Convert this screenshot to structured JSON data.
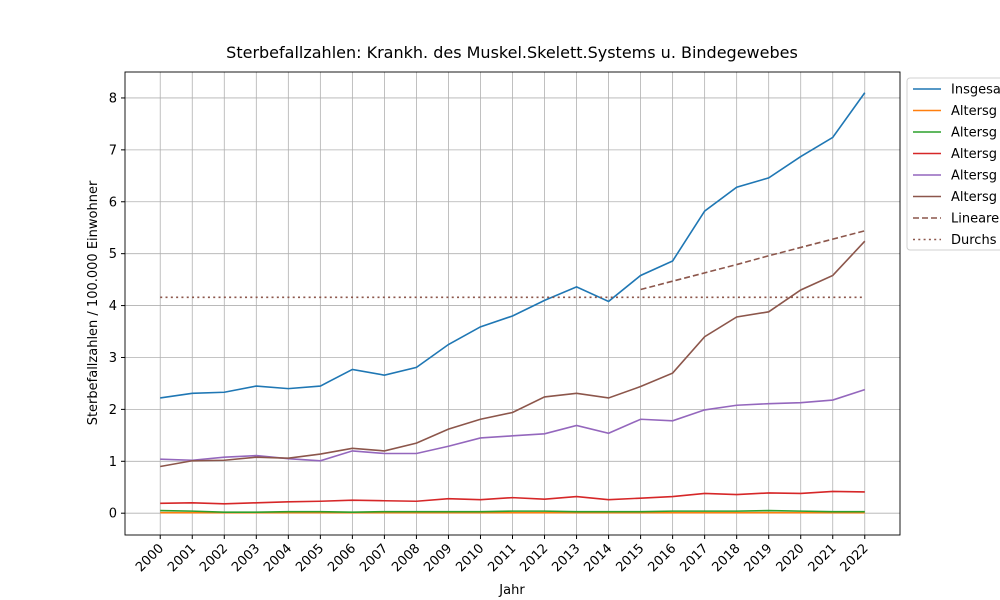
{
  "chart_data": {
    "type": "line",
    "title": "Sterbefallzahlen: Krankh. des Muskel.Skelett.Systems u. Bindegewebes",
    "xlabel": "Jahr",
    "ylabel": "Sterbefallzahlen / 100.000 Einwohner",
    "x": [
      2000,
      2001,
      2002,
      2003,
      2004,
      2005,
      2006,
      2007,
      2008,
      2009,
      2010,
      2011,
      2012,
      2013,
      2014,
      2015,
      2016,
      2017,
      2018,
      2019,
      2020,
      2021,
      2022
    ],
    "xticks": [
      2000,
      2001,
      2002,
      2003,
      2004,
      2005,
      2006,
      2007,
      2008,
      2009,
      2010,
      2011,
      2012,
      2013,
      2014,
      2015,
      2016,
      2017,
      2018,
      2019,
      2020,
      2021,
      2022
    ],
    "xlim": [
      1998.9,
      2023.1
    ],
    "ylim": [
      -0.42,
      8.5
    ],
    "yticks": [
      0,
      1,
      2,
      3,
      4,
      5,
      6,
      7,
      8
    ],
    "grid": true,
    "legend": "outside upper right",
    "series": [
      {
        "name": "Insgesa",
        "color": "#1f77b4",
        "dash": "solid",
        "values": [
          2.22,
          2.31,
          2.33,
          2.45,
          2.4,
          2.45,
          2.77,
          2.66,
          2.81,
          3.25,
          3.59,
          3.8,
          4.1,
          4.36,
          4.08,
          4.58,
          4.86,
          5.82,
          6.28,
          6.46,
          6.87,
          7.24,
          8.1
        ]
      },
      {
        "name": "Altersg",
        "color": "#ff7f0e",
        "dash": "solid",
        "values": [
          0.01,
          0.01,
          0.01,
          0.01,
          0.01,
          0.01,
          0.01,
          0.01,
          0.01,
          0.01,
          0.01,
          0.01,
          0.01,
          0.01,
          0.01,
          0.01,
          0.01,
          0.01,
          0.01,
          0.01,
          0.01,
          0.01,
          0.01
        ]
      },
      {
        "name": "Altersg",
        "color": "#2ca02c",
        "dash": "solid",
        "values": [
          0.05,
          0.04,
          0.02,
          0.02,
          0.03,
          0.03,
          0.02,
          0.03,
          0.03,
          0.03,
          0.03,
          0.04,
          0.04,
          0.03,
          0.03,
          0.03,
          0.04,
          0.04,
          0.04,
          0.05,
          0.04,
          0.03,
          0.03
        ]
      },
      {
        "name": "Altersg",
        "color": "#d62728",
        "dash": "solid",
        "values": [
          0.19,
          0.2,
          0.18,
          0.2,
          0.22,
          0.23,
          0.25,
          0.24,
          0.23,
          0.28,
          0.26,
          0.3,
          0.27,
          0.32,
          0.26,
          0.29,
          0.32,
          0.38,
          0.36,
          0.39,
          0.38,
          0.42,
          0.41
        ]
      },
      {
        "name": "Altersg",
        "color": "#9467bd",
        "dash": "solid",
        "values": [
          1.04,
          1.02,
          1.08,
          1.11,
          1.05,
          1.01,
          1.2,
          1.15,
          1.15,
          1.29,
          1.45,
          1.49,
          1.53,
          1.69,
          1.54,
          1.81,
          1.78,
          1.99,
          2.08,
          2.11,
          2.13,
          2.18,
          2.38
        ]
      },
      {
        "name": "Altersg",
        "color": "#8c564b",
        "dash": "solid",
        "values": [
          0.9,
          1.01,
          1.02,
          1.08,
          1.06,
          1.14,
          1.25,
          1.2,
          1.35,
          1.62,
          1.81,
          1.94,
          2.24,
          2.31,
          2.22,
          2.44,
          2.7,
          3.4,
          3.78,
          3.88,
          4.3,
          4.58,
          5.24
        ]
      },
      {
        "name": "Lineare",
        "color": "#8c564b",
        "dash": "dashed",
        "x": [
          2015,
          2016,
          2017,
          2018,
          2019,
          2020,
          2021,
          2022
        ],
        "values": [
          4.31,
          4.47,
          4.63,
          4.79,
          4.96,
          5.12,
          5.28,
          5.44
        ]
      },
      {
        "name": "Durchs",
        "color": "#8c564b",
        "dash": "dotted",
        "x": [
          2000,
          2022
        ],
        "values": [
          4.16,
          4.16
        ]
      }
    ]
  }
}
